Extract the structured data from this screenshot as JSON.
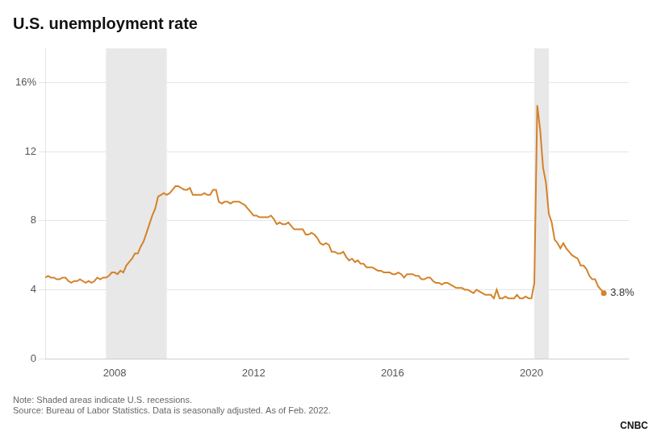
{
  "chart_data": {
    "type": "line",
    "title": "U.S. unemployment rate",
    "color": "#D4822A",
    "x": [
      2006.0,
      2006.083,
      2006.167,
      2006.25,
      2006.333,
      2006.417,
      2006.5,
      2006.583,
      2006.667,
      2006.75,
      2006.833,
      2006.917,
      2007.0,
      2007.083,
      2007.167,
      2007.25,
      2007.333,
      2007.417,
      2007.5,
      2007.583,
      2007.667,
      2007.75,
      2007.833,
      2007.917,
      2008.0,
      2008.083,
      2008.167,
      2008.25,
      2008.333,
      2008.417,
      2008.5,
      2008.583,
      2008.667,
      2008.75,
      2008.833,
      2008.917,
      2009.0,
      2009.083,
      2009.167,
      2009.25,
      2009.333,
      2009.417,
      2009.5,
      2009.583,
      2009.667,
      2009.75,
      2009.833,
      2009.917,
      2010.0,
      2010.083,
      2010.167,
      2010.25,
      2010.333,
      2010.417,
      2010.5,
      2010.583,
      2010.667,
      2010.75,
      2010.833,
      2010.917,
      2011.0,
      2011.083,
      2011.167,
      2011.25,
      2011.333,
      2011.417,
      2011.5,
      2011.583,
      2011.667,
      2011.75,
      2011.833,
      2011.917,
      2012.0,
      2012.083,
      2012.167,
      2012.25,
      2012.333,
      2012.417,
      2012.5,
      2012.583,
      2012.667,
      2012.75,
      2012.833,
      2012.917,
      2013.0,
      2013.083,
      2013.167,
      2013.25,
      2013.333,
      2013.417,
      2013.5,
      2013.583,
      2013.667,
      2013.75,
      2013.833,
      2013.917,
      2014.0,
      2014.083,
      2014.167,
      2014.25,
      2014.333,
      2014.417,
      2014.5,
      2014.583,
      2014.667,
      2014.75,
      2014.833,
      2014.917,
      2015.0,
      2015.083,
      2015.167,
      2015.25,
      2015.333,
      2015.417,
      2015.5,
      2015.583,
      2015.667,
      2015.75,
      2015.833,
      2015.917,
      2016.0,
      2016.083,
      2016.167,
      2016.25,
      2016.333,
      2016.417,
      2016.5,
      2016.583,
      2016.667,
      2016.75,
      2016.833,
      2016.917,
      2017.0,
      2017.083,
      2017.167,
      2017.25,
      2017.333,
      2017.417,
      2017.5,
      2017.583,
      2017.667,
      2017.75,
      2017.833,
      2017.917,
      2018.0,
      2018.083,
      2018.167,
      2018.25,
      2018.333,
      2018.417,
      2018.5,
      2018.583,
      2018.667,
      2018.75,
      2018.833,
      2018.917,
      2019.0,
      2019.083,
      2019.167,
      2019.25,
      2019.333,
      2019.417,
      2019.5,
      2019.583,
      2019.667,
      2019.75,
      2019.833,
      2019.917,
      2020.0,
      2020.083,
      2020.167,
      2020.25,
      2020.333,
      2020.417,
      2020.5,
      2020.583,
      2020.667,
      2020.75,
      2020.833,
      2020.917,
      2021.0,
      2021.083,
      2021.167,
      2021.25,
      2021.333,
      2021.417,
      2021.5,
      2021.583,
      2021.667,
      2021.75,
      2021.833,
      2021.917,
      2022.0,
      2022.083
    ],
    "values": [
      4.7,
      4.8,
      4.7,
      4.7,
      4.6,
      4.6,
      4.7,
      4.7,
      4.5,
      4.4,
      4.5,
      4.5,
      4.6,
      4.5,
      4.4,
      4.5,
      4.4,
      4.5,
      4.7,
      4.6,
      4.7,
      4.7,
      4.8,
      5.0,
      5.0,
      4.9,
      5.1,
      5.0,
      5.4,
      5.6,
      5.8,
      6.1,
      6.1,
      6.5,
      6.8,
      7.3,
      7.8,
      8.3,
      8.7,
      9.4,
      9.5,
      9.6,
      9.5,
      9.6,
      9.8,
      10.0,
      10.0,
      9.9,
      9.8,
      9.8,
      9.9,
      9.5,
      9.5,
      9.5,
      9.5,
      9.6,
      9.5,
      9.5,
      9.8,
      9.8,
      9.1,
      9.0,
      9.1,
      9.1,
      9.0,
      9.1,
      9.1,
      9.1,
      9.0,
      8.9,
      8.7,
      8.5,
      8.3,
      8.3,
      8.2,
      8.2,
      8.2,
      8.2,
      8.3,
      8.1,
      7.8,
      7.9,
      7.8,
      7.8,
      7.9,
      7.7,
      7.5,
      7.5,
      7.5,
      7.5,
      7.2,
      7.2,
      7.3,
      7.2,
      7.0,
      6.7,
      6.6,
      6.7,
      6.6,
      6.2,
      6.2,
      6.1,
      6.1,
      6.2,
      5.9,
      5.7,
      5.8,
      5.6,
      5.7,
      5.5,
      5.5,
      5.3,
      5.3,
      5.3,
      5.2,
      5.1,
      5.1,
      5.0,
      5.0,
      5.0,
      4.9,
      4.9,
      5.0,
      4.9,
      4.7,
      4.9,
      4.9,
      4.9,
      4.8,
      4.8,
      4.6,
      4.6,
      4.7,
      4.7,
      4.5,
      4.4,
      4.4,
      4.3,
      4.4,
      4.4,
      4.3,
      4.2,
      4.1,
      4.1,
      4.1,
      4.0,
      4.0,
      3.9,
      3.8,
      4.0,
      3.9,
      3.8,
      3.7,
      3.7,
      3.7,
      3.5,
      4.0,
      3.5,
      3.5,
      3.6,
      3.5,
      3.5,
      3.5,
      3.7,
      3.5,
      3.5,
      3.6,
      3.5,
      3.5,
      4.4,
      14.7,
      13.3,
      11.1,
      10.2,
      8.4,
      7.9,
      6.9,
      6.7,
      6.4,
      6.7,
      6.4,
      6.2,
      6.0,
      5.9,
      5.8,
      5.4,
      5.4,
      5.2,
      4.8,
      4.6,
      4.6,
      4.2,
      4.0,
      3.8
    ],
    "xlim": [
      2006.0,
      2022.8
    ],
    "xticks": [
      2008,
      2012,
      2016,
      2020
    ],
    "ylim": [
      0,
      18.0
    ],
    "yticks": [
      0,
      4,
      8,
      12,
      {
        "value": 16,
        "label": "16%"
      }
    ],
    "grid": "y",
    "shaded_ranges": [
      [
        2007.75,
        2009.5
      ],
      [
        2020.08,
        2020.5
      ]
    ],
    "annotations": [
      {
        "text": "3.8%",
        "x": 2022.083,
        "y": 3.8
      }
    ],
    "footnotes": [
      "Note: Shaded areas indicate U.S. recessions.",
      "Source: Bureau of Labor Statistics. Data is seasonally adjusted. As of Feb. 2022."
    ],
    "credit": "CNBC"
  }
}
